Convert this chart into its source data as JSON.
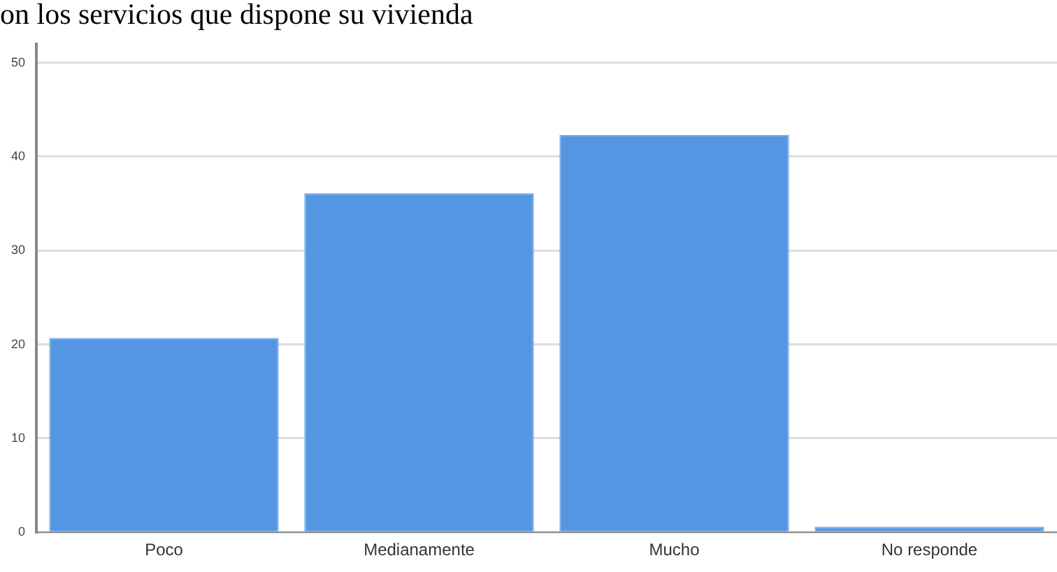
{
  "chart_data": {
    "type": "bar",
    "title": "on los servicios que dispone su vivienda",
    "categories": [
      "Poco",
      "Medianamente",
      "Mucho",
      "No responde"
    ],
    "values": [
      20.7,
      36.1,
      42.3,
      0.6
    ],
    "color": "#5596e3",
    "ylim": [
      0,
      52
    ],
    "yticks": [
      0,
      10,
      20,
      30,
      40,
      50
    ],
    "grid": "y"
  }
}
